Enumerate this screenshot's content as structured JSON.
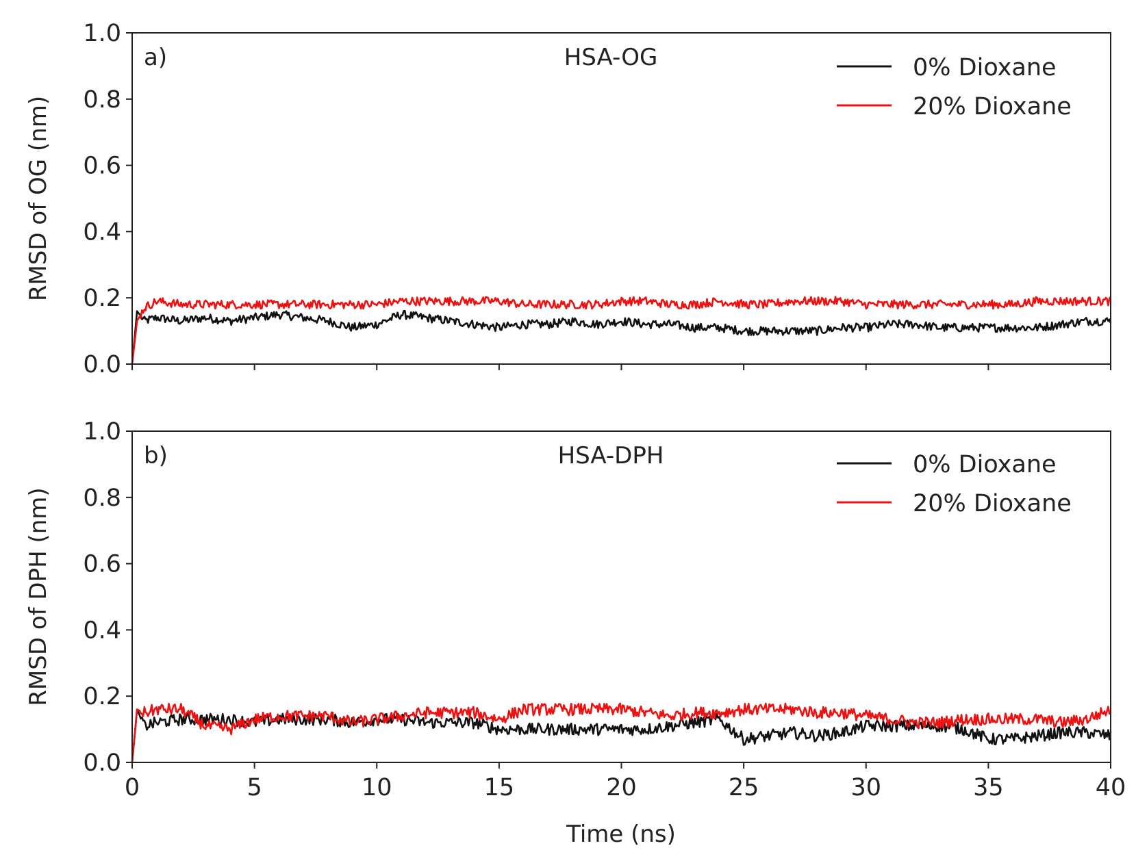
{
  "chart_data": [
    {
      "type": "line",
      "panel_label": "a)",
      "title": "HSA-OG",
      "xlabel": "",
      "ylabel": "RMSD of OG (nm)",
      "xlim": [
        0,
        40
      ],
      "ylim": [
        0.0,
        1.0
      ],
      "xticks": [
        0,
        5,
        10,
        15,
        20,
        25,
        30,
        35,
        40
      ],
      "yticks": [
        0.0,
        0.2,
        0.4,
        0.6,
        0.8,
        1.0
      ],
      "xtick_labels_visible": false,
      "legend_position": "top-right",
      "series": [
        {
          "name": "0% Dioxane",
          "color": "#111111",
          "x": [
            0,
            0.2,
            0.5,
            1,
            2,
            3,
            4,
            5,
            6,
            7,
            8,
            9,
            10,
            11,
            12,
            13,
            14,
            15,
            16,
            17,
            18,
            19,
            20,
            21,
            22,
            23,
            24,
            25,
            26,
            27,
            28,
            29,
            30,
            31,
            32,
            33,
            34,
            35,
            36,
            37,
            38,
            39,
            40
          ],
          "y": [
            0.0,
            0.16,
            0.13,
            0.14,
            0.13,
            0.14,
            0.13,
            0.14,
            0.15,
            0.14,
            0.13,
            0.11,
            0.12,
            0.15,
            0.14,
            0.13,
            0.12,
            0.11,
            0.12,
            0.12,
            0.13,
            0.12,
            0.13,
            0.12,
            0.12,
            0.11,
            0.11,
            0.1,
            0.1,
            0.1,
            0.1,
            0.11,
            0.11,
            0.12,
            0.12,
            0.11,
            0.11,
            0.11,
            0.11,
            0.11,
            0.12,
            0.13,
            0.13
          ]
        },
        {
          "name": "20% Dioxane",
          "color": "#ee1111",
          "x": [
            0,
            0.2,
            0.5,
            1,
            2,
            3,
            4,
            5,
            6,
            7,
            8,
            9,
            10,
            11,
            12,
            13,
            14,
            15,
            16,
            17,
            18,
            19,
            20,
            21,
            22,
            23,
            24,
            25,
            26,
            27,
            28,
            29,
            30,
            31,
            32,
            33,
            34,
            35,
            36,
            37,
            38,
            39,
            40
          ],
          "y": [
            0.0,
            0.13,
            0.17,
            0.19,
            0.18,
            0.18,
            0.18,
            0.18,
            0.18,
            0.18,
            0.18,
            0.18,
            0.18,
            0.19,
            0.19,
            0.19,
            0.19,
            0.19,
            0.18,
            0.18,
            0.18,
            0.18,
            0.19,
            0.19,
            0.18,
            0.18,
            0.19,
            0.18,
            0.18,
            0.19,
            0.19,
            0.19,
            0.18,
            0.18,
            0.18,
            0.18,
            0.18,
            0.18,
            0.18,
            0.19,
            0.19,
            0.19,
            0.19
          ]
        }
      ]
    },
    {
      "type": "line",
      "panel_label": "b)",
      "title": "HSA-DPH",
      "xlabel": "Time (ns)",
      "ylabel": "RMSD of DPH (nm)",
      "xlim": [
        0,
        40
      ],
      "ylim": [
        0.0,
        1.0
      ],
      "xticks": [
        0,
        5,
        10,
        15,
        20,
        25,
        30,
        35,
        40
      ],
      "yticks": [
        0.0,
        0.2,
        0.4,
        0.6,
        0.8,
        1.0
      ],
      "xtick_labels_visible": true,
      "legend_position": "top-right",
      "series": [
        {
          "name": "0% Dioxane",
          "color": "#111111",
          "x": [
            0,
            0.2,
            0.5,
            1,
            2,
            3,
            4,
            5,
            6,
            7,
            8,
            9,
            10,
            11,
            12,
            13,
            14,
            15,
            16,
            17,
            18,
            19,
            20,
            21,
            22,
            23,
            24,
            25,
            26,
            27,
            28,
            29,
            30,
            31,
            32,
            33,
            34,
            35,
            36,
            37,
            38,
            39,
            40
          ],
          "y": [
            0.0,
            0.16,
            0.11,
            0.12,
            0.13,
            0.13,
            0.13,
            0.12,
            0.13,
            0.13,
            0.13,
            0.12,
            0.13,
            0.13,
            0.12,
            0.12,
            0.12,
            0.1,
            0.1,
            0.1,
            0.1,
            0.1,
            0.1,
            0.1,
            0.11,
            0.12,
            0.13,
            0.07,
            0.08,
            0.09,
            0.08,
            0.09,
            0.11,
            0.11,
            0.11,
            0.11,
            0.1,
            0.07,
            0.07,
            0.08,
            0.09,
            0.09,
            0.08
          ]
        },
        {
          "name": "20% Dioxane",
          "color": "#ee1111",
          "x": [
            0,
            0.2,
            0.5,
            1,
            2,
            3,
            4,
            5,
            6,
            7,
            8,
            9,
            10,
            11,
            12,
            13,
            14,
            15,
            16,
            17,
            18,
            19,
            20,
            21,
            22,
            23,
            24,
            25,
            26,
            27,
            28,
            29,
            30,
            31,
            32,
            33,
            34,
            35,
            36,
            37,
            38,
            39,
            40
          ],
          "y": [
            0.0,
            0.16,
            0.15,
            0.16,
            0.16,
            0.11,
            0.1,
            0.13,
            0.14,
            0.14,
            0.14,
            0.12,
            0.13,
            0.14,
            0.15,
            0.15,
            0.15,
            0.13,
            0.16,
            0.16,
            0.16,
            0.16,
            0.16,
            0.15,
            0.14,
            0.15,
            0.15,
            0.16,
            0.16,
            0.16,
            0.15,
            0.15,
            0.14,
            0.13,
            0.12,
            0.12,
            0.13,
            0.13,
            0.13,
            0.13,
            0.12,
            0.13,
            0.16
          ]
        }
      ]
    }
  ]
}
